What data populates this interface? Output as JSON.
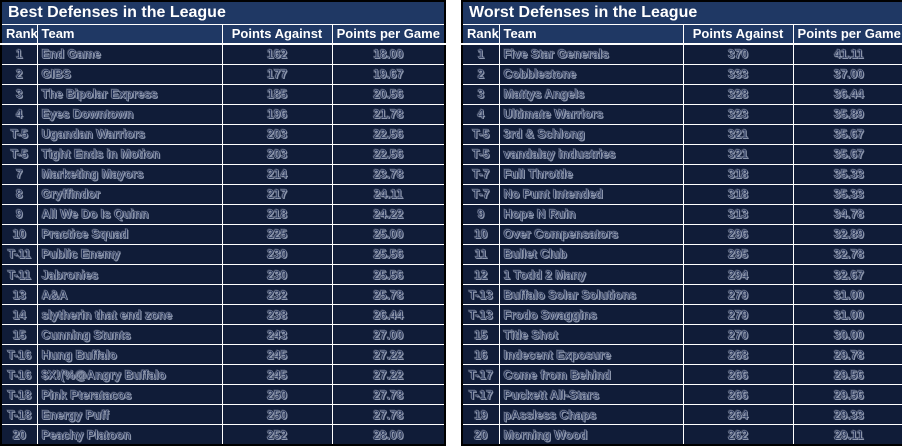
{
  "colors": {
    "table_header_bg": "#1F3864",
    "table_row_bg": "#101C38",
    "gridline": "#FFFFFF",
    "header_text": "#FFFFFF",
    "etched_text_outline": "#97A1B6",
    "outer_border": "#000000",
    "page_background": "#FFFFFF"
  },
  "chart_data": [
    {
      "type": "table",
      "title": "Best Defenses in the League",
      "columns": [
        "Rank",
        "Team",
        "Points Against",
        "Points per Game"
      ],
      "rows": [
        [
          "1",
          "End Game",
          "162",
          "18.00"
        ],
        [
          "2",
          "GIBS",
          "177",
          "19.67"
        ],
        [
          "3",
          "The Bipolar Express",
          "185",
          "20.56"
        ],
        [
          "4",
          "Eyes Downtown",
          "196",
          "21.78"
        ],
        [
          "T-5",
          "Ugandan Warriors",
          "203",
          "22.56"
        ],
        [
          "T-5",
          "Tight Ends in Motion",
          "203",
          "22.56"
        ],
        [
          "7",
          "Marketing Mayors",
          "214",
          "23.78"
        ],
        [
          "8",
          "Gryffindor",
          "217",
          "24.11"
        ],
        [
          "9",
          "All We Do Is Quinn",
          "218",
          "24.22"
        ],
        [
          "10",
          "Practice Squad",
          "225",
          "25.00"
        ],
        [
          "T-11",
          "Public Enemy",
          "230",
          "25.56"
        ],
        [
          "T-11",
          "Jabronies",
          "230",
          "25.56"
        ],
        [
          "13",
          "A&A",
          "232",
          "25.78"
        ],
        [
          "14",
          "slytherin that end zone",
          "238",
          "26.44"
        ],
        [
          "15",
          "Cunning Stunts",
          "243",
          "27.00"
        ],
        [
          "T-16",
          "Hung Buffalo",
          "245",
          "27.22"
        ],
        [
          "T-16",
          "$X!(%@Angry Buffalo",
          "245",
          "27.22"
        ],
        [
          "T-18",
          "Pink Pteratacos",
          "250",
          "27.78"
        ],
        [
          "T-18",
          "Energy Puff",
          "250",
          "27.78"
        ],
        [
          "20",
          "Peachy Platoon",
          "252",
          "28.00"
        ]
      ]
    },
    {
      "type": "table",
      "title": "Worst Defenses in the League",
      "columns": [
        "Rank",
        "Team",
        "Points Against",
        "Points per Game"
      ],
      "rows": [
        [
          "1",
          "Five Star Generals",
          "370",
          "41.11"
        ],
        [
          "2",
          "Cobblestone",
          "333",
          "37.00"
        ],
        [
          "3",
          "Mattys Angels",
          "328",
          "36.44"
        ],
        [
          "4",
          "Ultimate Warriors",
          "323",
          "35.89"
        ],
        [
          "T-5",
          "3rd & Schlong",
          "321",
          "35.67"
        ],
        [
          "T-5",
          "vandalay industries",
          "321",
          "35.67"
        ],
        [
          "T-7",
          "Full Throttle",
          "318",
          "35.33"
        ],
        [
          "T-7",
          "No Punt Intended",
          "318",
          "35.33"
        ],
        [
          "9",
          "Hope N Ruin",
          "313",
          "34.78"
        ],
        [
          "10",
          "Over Compensators",
          "296",
          "32.89"
        ],
        [
          "11",
          "Bullet Club",
          "295",
          "32.78"
        ],
        [
          "12",
          "1 Todd 2 Many",
          "294",
          "32.67"
        ],
        [
          "T-13",
          "Buffalo Solar Solutions",
          "279",
          "31.00"
        ],
        [
          "T-13",
          "Frodo Swaggins",
          "279",
          "31.00"
        ],
        [
          "15",
          "Title Shot",
          "270",
          "30.00"
        ],
        [
          "16",
          "Indecent Exposure",
          "268",
          "29.78"
        ],
        [
          "T-17",
          "Come from Behind",
          "266",
          "29.56"
        ],
        [
          "T-17",
          "Puckett All-Stars",
          "266",
          "29.56"
        ],
        [
          "19",
          "pAssless Chaps",
          "264",
          "29.33"
        ],
        [
          "20",
          "Morning Wood",
          "262",
          "29.11"
        ]
      ]
    }
  ]
}
